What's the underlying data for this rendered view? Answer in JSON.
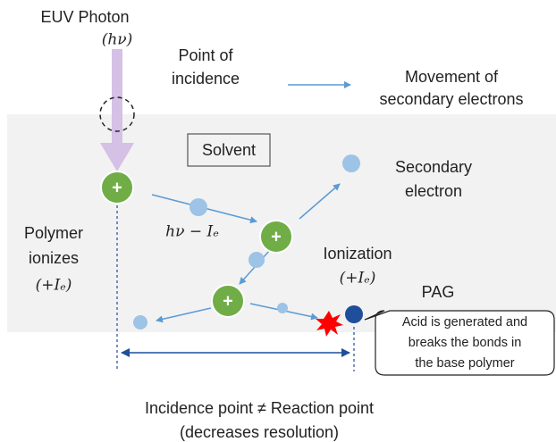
{
  "labels": {
    "euv_photon": "EUV Photon",
    "photon_energy": "(hν)",
    "point_of_incidence": [
      "Point of",
      "incidence"
    ],
    "legend": [
      "Movement of",
      "secondary electrons"
    ],
    "solvent": "Solvent",
    "secondary_electron": [
      "Secondary",
      "electron"
    ],
    "energy_after": "hν − Iₑ",
    "polymer_ionizes": [
      "Polymer",
      "ionizes",
      "(+Iₑ)"
    ],
    "ionization": [
      "Ionization",
      "(+Iₑ)"
    ],
    "pag": "PAG",
    "callout": [
      "Acid is generated and",
      "breaks the bonds in",
      "the base polymer"
    ],
    "caption": [
      "Incidence point ≠ Reaction point",
      "(decreases resolution)"
    ]
  },
  "plus_sign": "+"
}
